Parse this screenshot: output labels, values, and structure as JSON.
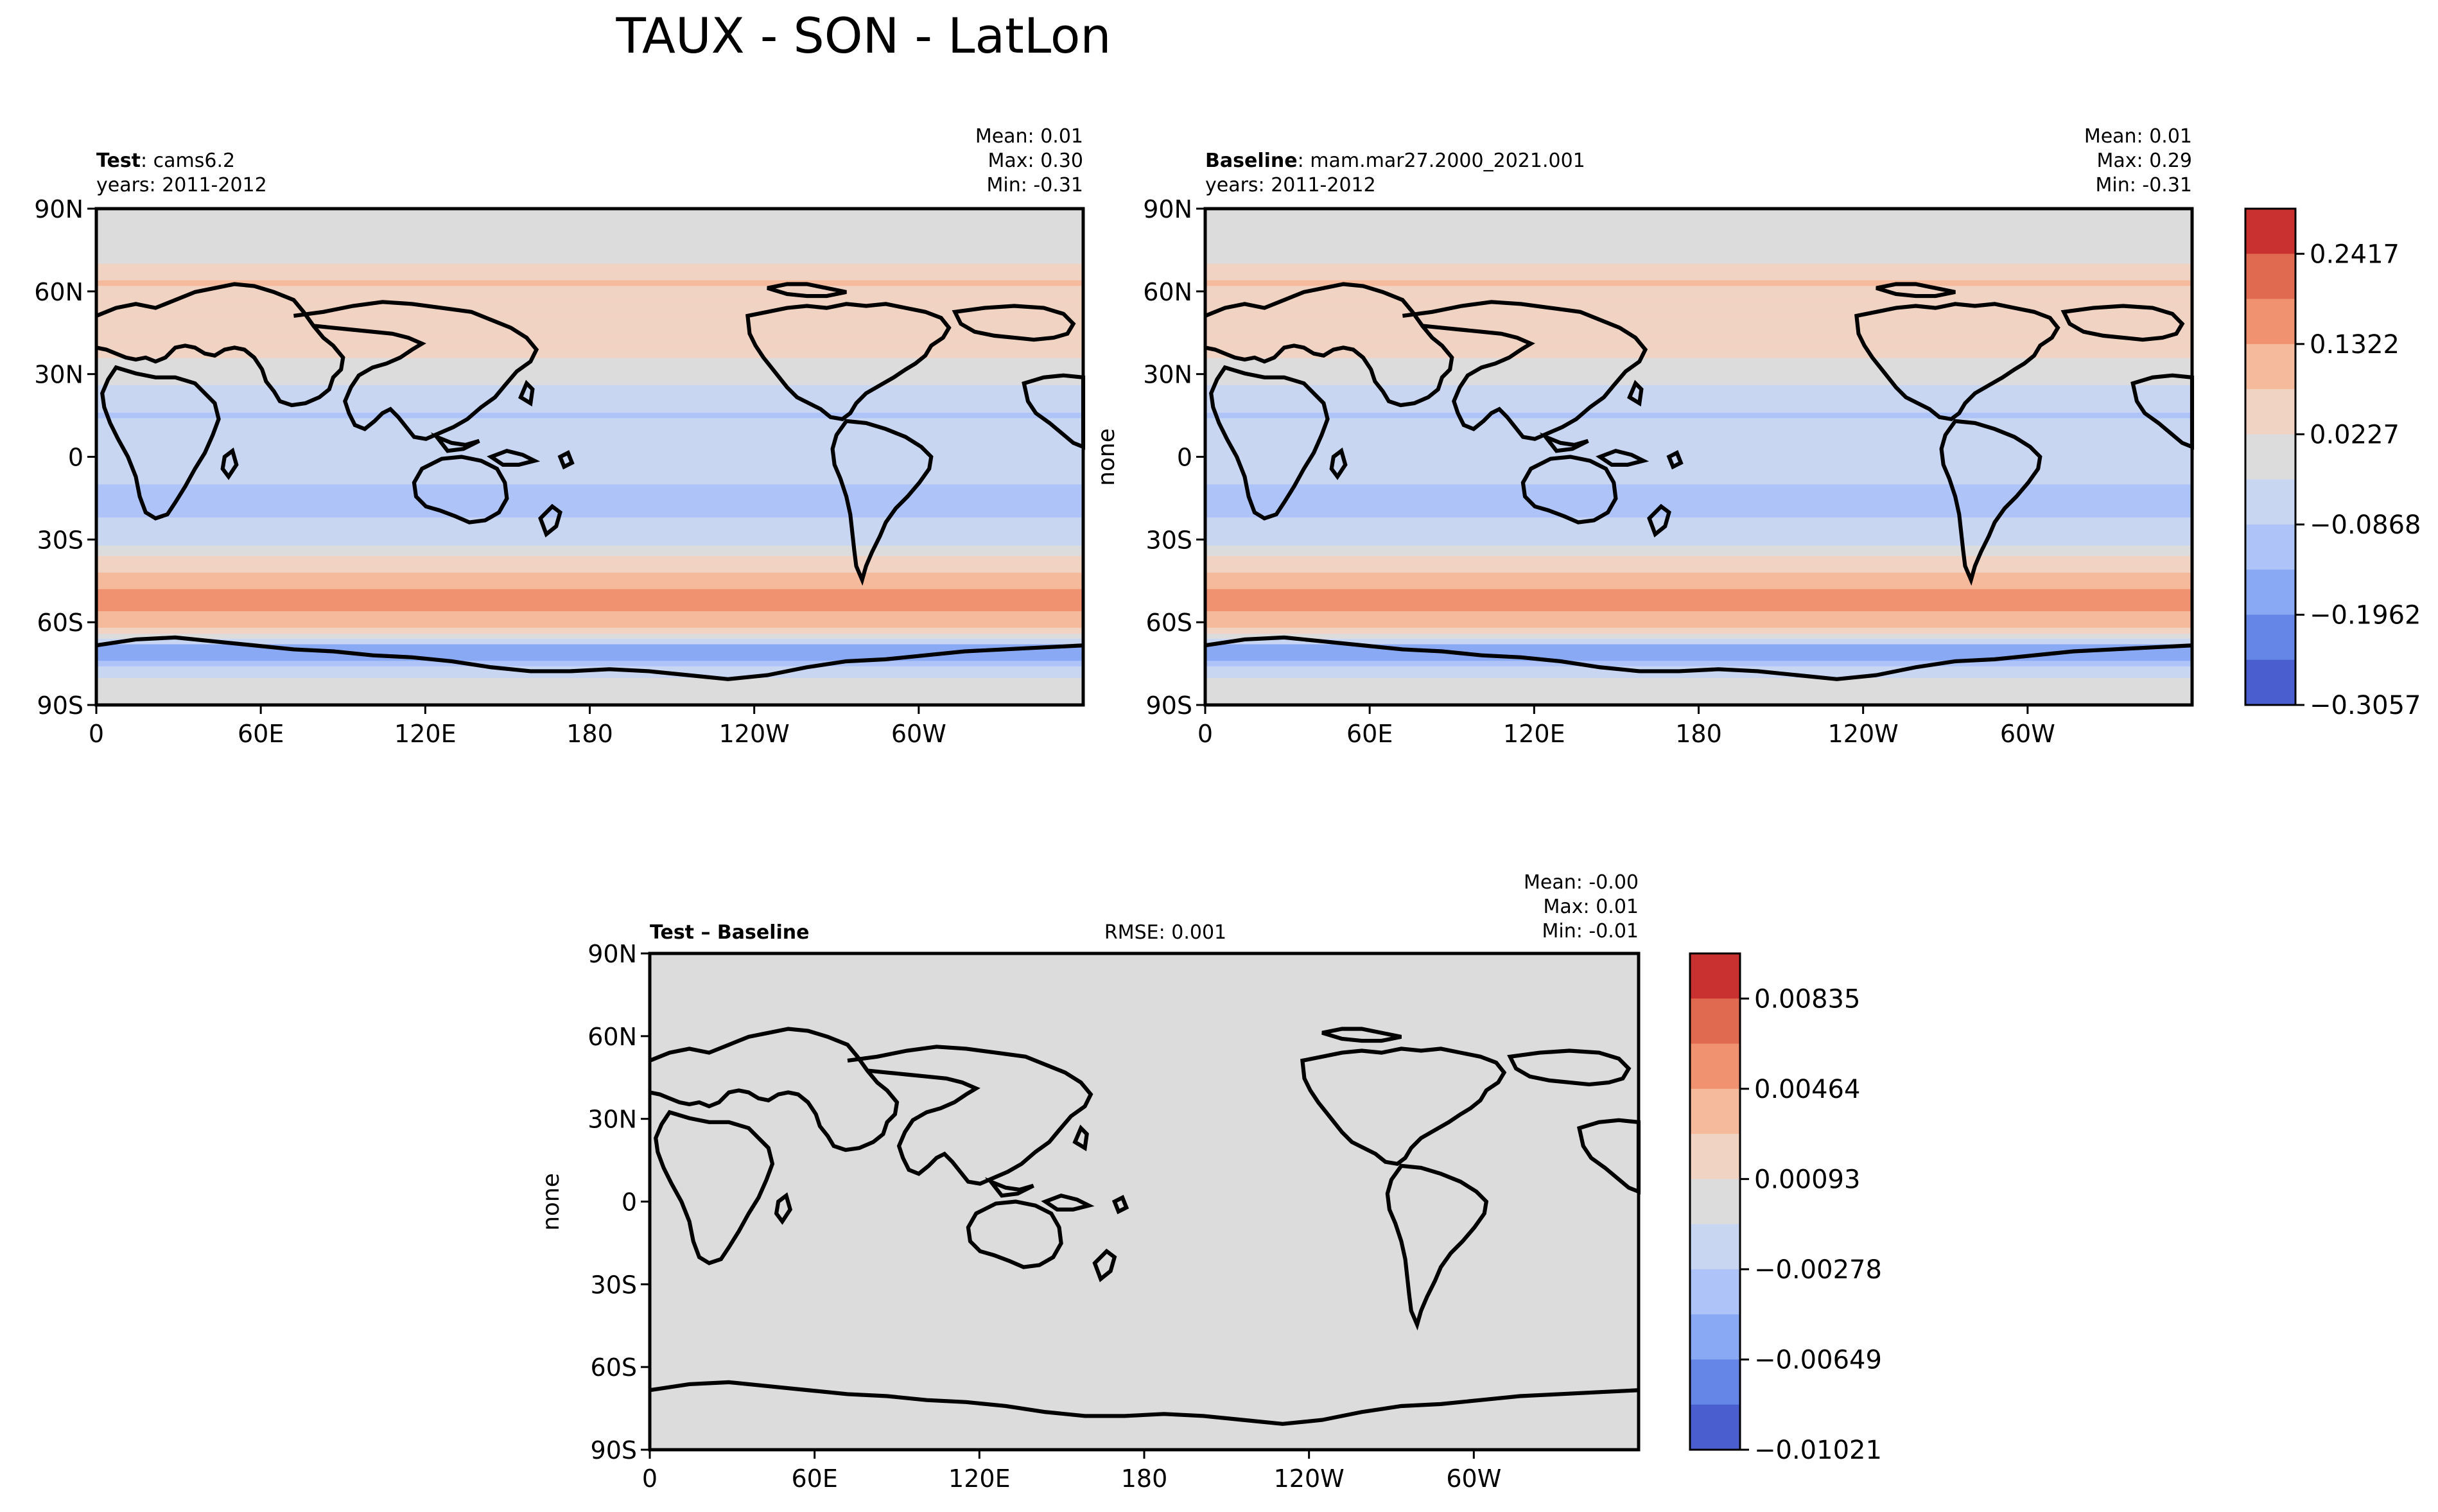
{
  "figure": {
    "title": "TAUX - SON - LatLon"
  },
  "colors": {
    "grey": "#dcdcdc",
    "red_dark": "#c93131",
    "red": "#e06a50",
    "red_mid": "#f0926f",
    "red_light": "#f5b99b",
    "red_pale": "#f1d3c3",
    "blue_pale": "#c8d6f2",
    "blue_light": "#aec4f8",
    "blue_mid": "#8aa9f4",
    "blue": "#6586e6",
    "blue_dark": "#4a5ed0"
  },
  "panels": {
    "test": {
      "label_bold": "Test",
      "label_rest": ": cams6.2",
      "years": "years: 2011-2012",
      "mean": "Mean:  0.01",
      "max": "Max:  0.30",
      "min": "Min: -0.31",
      "ylabel": ""
    },
    "baseline": {
      "label_bold": "Baseline",
      "label_rest": ": mam.mar27.2000_2021.001",
      "years": "years: 2011-2012",
      "mean": "Mean:  0.01",
      "max": "Max:  0.29",
      "min": "Min: -0.31",
      "ylabel": "none"
    },
    "diff": {
      "label_bold": "Test – Baseline",
      "rmse": "RMSE: 0.001",
      "mean": "Mean: -0.00",
      "max": "Max:  0.01",
      "min": "Min: -0.01",
      "ylabel": "none"
    }
  },
  "chart_data": [
    {
      "type": "heatmap",
      "name_panel": "Test",
      "x_ticks": [
        "0",
        "60E",
        "120E",
        "180",
        "120W",
        "60W"
      ],
      "y_ticks": [
        "90N",
        "60N",
        "30N",
        "0",
        "30S",
        "60S",
        "90S"
      ],
      "zonal_profile_lat": [
        90,
        75,
        70,
        62,
        55,
        48,
        40,
        30,
        20,
        15,
        5,
        0,
        -8,
        -15,
        -25,
        -32,
        -38,
        -45,
        -50,
        -55,
        -60,
        -66,
        -70,
        -75,
        -82,
        -90
      ],
      "zonal_profile_value": [
        0.0,
        0.02,
        0.06,
        0.12,
        0.06,
        0.1,
        0.08,
        0.02,
        -0.05,
        -0.07,
        -0.05,
        -0.02,
        -0.06,
        -0.08,
        -0.06,
        0.0,
        0.08,
        0.14,
        0.22,
        0.18,
        0.14,
        0.02,
        -0.18,
        -0.1,
        0.02,
        0.0
      ]
    },
    {
      "type": "heatmap",
      "name_panel": "Baseline",
      "x_ticks": [
        "0",
        "60E",
        "120E",
        "180",
        "120W",
        "60W"
      ],
      "y_ticks": [
        "90N",
        "60N",
        "30N",
        "0",
        "30S",
        "60S",
        "90S"
      ],
      "zonal_profile_lat": [
        90,
        75,
        70,
        62,
        55,
        48,
        40,
        30,
        20,
        15,
        5,
        0,
        -8,
        -15,
        -25,
        -32,
        -38,
        -45,
        -50,
        -55,
        -60,
        -66,
        -70,
        -75,
        -82,
        -90
      ],
      "zonal_profile_value": [
        0.0,
        0.02,
        0.06,
        0.12,
        0.06,
        0.1,
        0.08,
        0.02,
        -0.05,
        -0.07,
        -0.05,
        -0.02,
        -0.06,
        -0.08,
        -0.06,
        0.0,
        0.08,
        0.14,
        0.22,
        0.18,
        0.14,
        0.02,
        -0.18,
        -0.1,
        0.02,
        0.0
      ]
    },
    {
      "type": "heatmap",
      "name_panel": "Test – Baseline",
      "x_ticks": [
        "0",
        "60E",
        "120E",
        "180",
        "120W",
        "60W"
      ],
      "y_ticks": [
        "90N",
        "60N",
        "30N",
        "0",
        "30S",
        "60S",
        "90S"
      ],
      "zonal_profile_lat": [
        90,
        -90
      ],
      "zonal_profile_value": [
        0.0,
        0.0
      ]
    }
  ],
  "colorbars": {
    "top": {
      "labels": [
        "0.2417",
        "0.1322",
        "0.0227",
        "−0.0868",
        "−0.1962",
        "−0.3057"
      ],
      "vmin": -0.3057,
      "vmax": 0.3512
    },
    "diff": {
      "labels": [
        "0.00835",
        "0.00464",
        "0.00093",
        "−0.00278",
        "−0.00649",
        "−0.01021"
      ],
      "vmin": -0.01021,
      "vmax": 0.01206
    }
  }
}
